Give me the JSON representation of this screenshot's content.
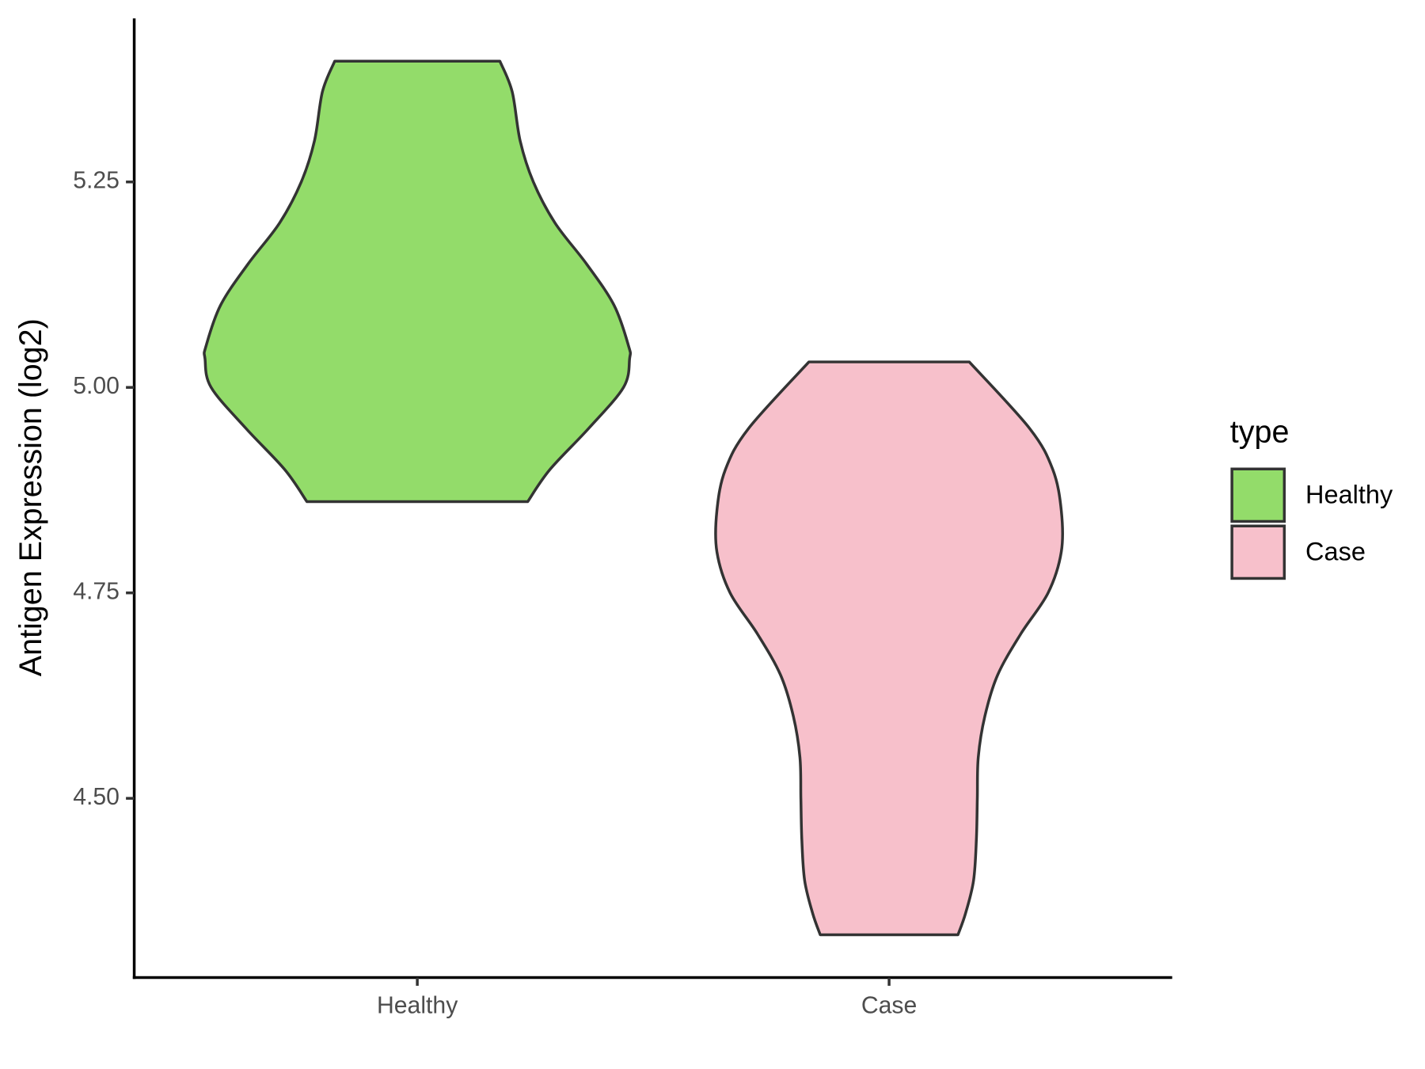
{
  "chart_data": {
    "type": "violin",
    "y_label": "Antigen Expression (log2)",
    "categories": [
      "Healthy",
      "Case"
    ],
    "legend_title": "type",
    "legend_position": "right",
    "ylim": [
      4.282,
      5.449
    ],
    "yticks": [
      {
        "value": 4.5,
        "label": "4.50"
      },
      4.75,
      {
        "value": 5.0,
        "label": "5.00"
      },
      5.25
    ],
    "series": [
      {
        "name": "Healthy",
        "color": "#93dc6a",
        "y": [
          5.397,
          5.36,
          5.3,
          5.25,
          5.2,
          5.15,
          5.1,
          5.05,
          5.035,
          5.0,
          4.95,
          4.9,
          4.861
        ],
        "half_width": [
          0.175,
          0.201,
          0.218,
          0.246,
          0.292,
          0.359,
          0.417,
          0.448,
          0.45,
          0.437,
          0.363,
          0.281,
          0.234
        ]
      },
      {
        "name": "Case",
        "color": "#f7c0cb",
        "y": [
          5.031,
          4.95,
          4.9,
          4.85,
          4.8,
          4.75,
          4.7,
          4.65,
          4.6,
          4.55,
          4.5,
          4.45,
          4.4,
          4.36,
          4.334
        ],
        "half_width": [
          0.17,
          0.298,
          0.347,
          0.365,
          0.365,
          0.337,
          0.279,
          0.23,
          0.203,
          0.189,
          0.187,
          0.185,
          0.179,
          0.162,
          0.146
        ]
      }
    ]
  }
}
